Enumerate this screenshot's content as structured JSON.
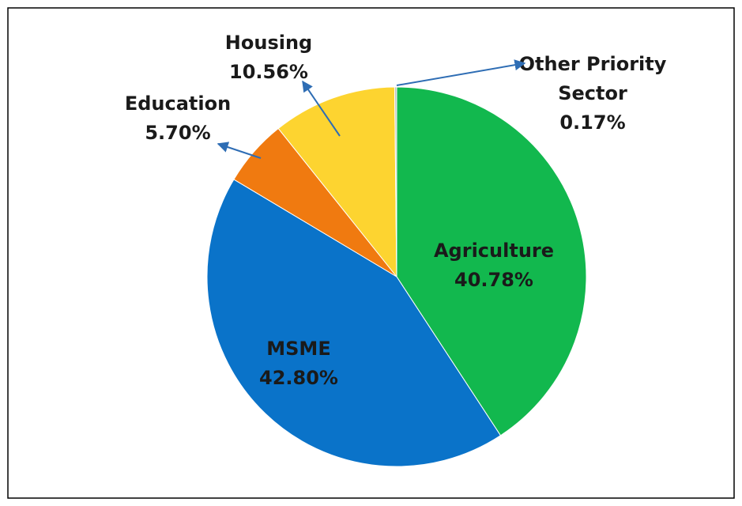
{
  "chart_data": {
    "type": "pie",
    "categories": [
      "Agriculture",
      "MSME",
      "Education",
      "Housing",
      "Other Priority Sector"
    ],
    "values": [
      40.78,
      42.8,
      5.7,
      10.56,
      0.17
    ],
    "value_labels": [
      "40.78%",
      "42.80%",
      "5.70%",
      "10.56%",
      "0.17%"
    ],
    "colors": [
      "#12b84e",
      "#0a73c9",
      "#f07a10",
      "#fdd430",
      "#bdbdbd"
    ]
  }
}
